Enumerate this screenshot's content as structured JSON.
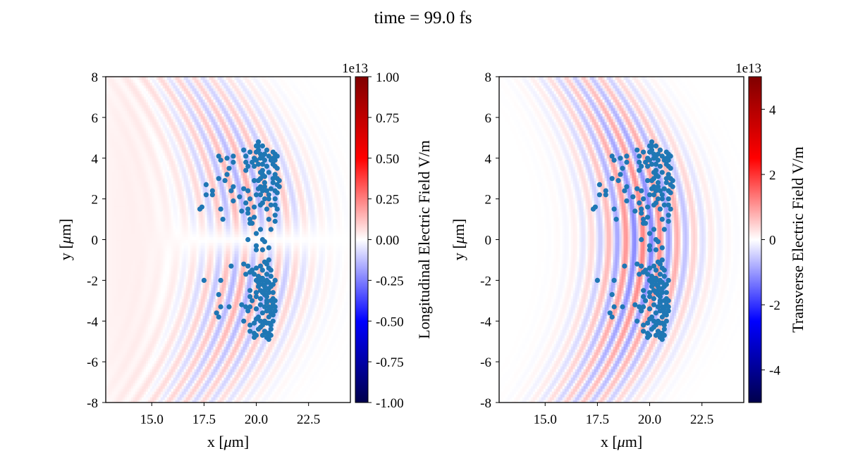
{
  "figure": {
    "suptitle": "time = 99.0 fs"
  },
  "chart_data": [
    {
      "type": "heatmap",
      "name": "longitudinal-field-panel",
      "xlabel": "x [$\\mu$m]",
      "ylabel": "y [$\\mu$m]",
      "xlim": [
        12.8,
        24.5
      ],
      "ylim": [
        -8,
        8
      ],
      "xticks": [
        15.0,
        17.5,
        20.0,
        22.5
      ],
      "xtick_labels": [
        "15.0",
        "17.5",
        "20.0",
        "22.5"
      ],
      "yticks": [
        -8,
        -6,
        -4,
        -2,
        0,
        2,
        4,
        6,
        8
      ],
      "ytick_labels": [
        "-8",
        "-6",
        "-4",
        "-2",
        "0",
        "2",
        "4",
        "6",
        "8"
      ],
      "colorbar": {
        "label": "Longitudinal Electric Field V/m",
        "offset_label": "1e13",
        "range": [
          -1.0,
          1.0
        ],
        "ticks": [
          -1.0,
          -0.75,
          -0.5,
          -0.25,
          0.0,
          0.25,
          0.5,
          0.75,
          1.0
        ],
        "tick_labels": [
          "-1.00",
          "-0.75",
          "-0.50",
          "-0.25",
          "0.00",
          "0.25",
          "0.50",
          "0.75",
          "1.00"
        ],
        "colormap": "seismic"
      },
      "field": {
        "pattern": "curved wavefronts, weak amplitude, antisymmetric in y",
        "center_x": 19.8,
        "envelope_x_range": [
          15.5,
          22.5
        ],
        "max_value_fraction": 0.18
      },
      "scatter": {
        "color": "#1f77b4",
        "description": "electron macro-particles"
      },
      "grid": false
    },
    {
      "type": "heatmap",
      "name": "transverse-field-panel",
      "xlabel": "x [$\\mu$m]",
      "ylabel": "y [$\\mu$m]",
      "xlim": [
        12.8,
        24.5
      ],
      "ylim": [
        -8,
        8
      ],
      "xticks": [
        15.0,
        17.5,
        20.0,
        22.5
      ],
      "xtick_labels": [
        "15.0",
        "17.5",
        "20.0",
        "22.5"
      ],
      "yticks": [
        -8,
        -6,
        -4,
        -2,
        0,
        2,
        4,
        6,
        8
      ],
      "ytick_labels": [
        "-8",
        "-6",
        "-4",
        "-2",
        "0",
        "2",
        "4",
        "6",
        "8"
      ],
      "colorbar": {
        "label": "Transverse Electric Field V/m",
        "offset_label": "1e13",
        "range": [
          -5.0,
          5.0
        ],
        "ticks": [
          -4,
          -2,
          0,
          2,
          4
        ],
        "tick_labels": [
          "-4",
          "-2",
          "0",
          "2",
          "4"
        ],
        "colormap": "seismic"
      },
      "field": {
        "pattern": "curved wavefronts, moderate amplitude, symmetric in y",
        "center_x": 19.8,
        "envelope_x_range": [
          16.0,
          22.0
        ],
        "max_value_fraction": 0.25
      },
      "scatter": {
        "color": "#1f77b4",
        "description": "electron macro-particles"
      },
      "grid": false
    }
  ],
  "particles": {
    "points": [
      [
        18.2,
        4.1
      ],
      [
        18.3,
        3.9
      ],
      [
        18.6,
        4.0
      ],
      [
        18.9,
        4.1
      ],
      [
        18.9,
        3.8
      ],
      [
        18.7,
        3.5
      ],
      [
        18.6,
        3.2
      ],
      [
        18.5,
        2.9
      ],
      [
        18.2,
        3.0
      ],
      [
        17.9,
        2.4
      ],
      [
        17.6,
        2.7
      ],
      [
        17.6,
        2.2
      ],
      [
        17.9,
        2.2
      ],
      [
        17.4,
        1.6
      ],
      [
        17.3,
        1.5
      ],
      [
        18.3,
        1.5
      ],
      [
        18.4,
        1.0
      ],
      [
        18.9,
        1.9
      ],
      [
        18.9,
        2.6
      ],
      [
        18.8,
        2.4
      ],
      [
        19.2,
        2.1
      ],
      [
        19.3,
        1.4
      ],
      [
        19.4,
        2.5
      ],
      [
        19.6,
        2.4
      ],
      [
        19.5,
        1.8
      ],
      [
        19.6,
        1.3
      ],
      [
        19.7,
        1.0
      ],
      [
        19.7,
        0.8
      ],
      [
        19.6,
        1.5
      ],
      [
        19.9,
        1.6
      ],
      [
        20.2,
        1.7
      ],
      [
        20.3,
        1.8
      ],
      [
        20.7,
        1.7
      ],
      [
        20.5,
        1.5
      ],
      [
        20.6,
        1.0
      ],
      [
        20.9,
        0.9
      ],
      [
        20.7,
        0.5
      ],
      [
        20.2,
        0.5
      ],
      [
        20.0,
        0.3
      ],
      [
        19.6,
        0.0
      ],
      [
        20.3,
        0.0
      ],
      [
        20.4,
        -0.1
      ],
      [
        20.6,
        -0.4
      ],
      [
        20.0,
        -0.5
      ],
      [
        19.4,
        -1.2
      ],
      [
        19.6,
        -1.3
      ],
      [
        19.7,
        -1.6
      ],
      [
        19.8,
        -1.5
      ],
      [
        19.5,
        -1.7
      ],
      [
        18.8,
        -1.3
      ],
      [
        18.3,
        -2.0
      ],
      [
        17.5,
        -2.0
      ],
      [
        18.2,
        -2.7
      ],
      [
        18.3,
        -3.3
      ],
      [
        18.1,
        -3.6
      ],
      [
        18.2,
        -3.8
      ],
      [
        18.7,
        -3.3
      ],
      [
        19.3,
        -3.2
      ],
      [
        19.5,
        -3.3
      ],
      [
        19.6,
        -3.5
      ],
      [
        19.7,
        -3.3
      ],
      [
        19.4,
        -4.0
      ],
      [
        19.7,
        -4.2
      ],
      [
        19.7,
        -4.5
      ],
      [
        19.9,
        -4.6
      ],
      [
        19.9,
        -4.8
      ],
      [
        19.7,
        -2.5
      ],
      [
        19.7,
        -2.8
      ],
      [
        19.8,
        -3.0
      ],
      [
        20.0,
        -2.6
      ],
      [
        20.0,
        -2.0
      ],
      [
        20.1,
        -1.8
      ],
      [
        20.1,
        -2.3
      ],
      [
        20.3,
        -2.2
      ],
      [
        20.3,
        -1.9
      ],
      [
        20.5,
        -2.1
      ],
      [
        20.6,
        -2.4
      ],
      [
        20.5,
        -2.8
      ],
      [
        20.7,
        -3.0
      ],
      [
        20.7,
        -3.4
      ],
      [
        20.6,
        -3.8
      ],
      [
        20.4,
        -4.0
      ],
      [
        20.7,
        -4.2
      ],
      [
        20.6,
        -4.6
      ],
      [
        20.5,
        -4.8
      ],
      [
        20.8,
        -3.7
      ],
      [
        20.8,
        -3.2
      ],
      [
        20.5,
        -3.0
      ],
      [
        20.9,
        -2.0
      ],
      [
        20.3,
        -3.6
      ],
      [
        20.2,
        -4.3
      ],
      [
        20.0,
        -3.9
      ],
      [
        20.4,
        -1.1
      ],
      [
        20.2,
        -1.3
      ],
      [
        20.3,
        -1.5
      ],
      [
        20.6,
        -1.0
      ],
      [
        19.8,
        0.8
      ],
      [
        19.5,
        3.4
      ],
      [
        19.4,
        4.4
      ],
      [
        19.5,
        4.1
      ],
      [
        19.6,
        3.6
      ],
      [
        19.7,
        4.3
      ],
      [
        19.9,
        4.0
      ],
      [
        19.8,
        3.8
      ],
      [
        19.9,
        3.6
      ],
      [
        19.5,
        3.8
      ],
      [
        20.1,
        4.8
      ],
      [
        20.1,
        4.6
      ],
      [
        20.1,
        4.4
      ],
      [
        20.2,
        4.2
      ],
      [
        20.2,
        4.0
      ],
      [
        20.3,
        3.7
      ],
      [
        20.3,
        3.4
      ],
      [
        20.4,
        3.1
      ],
      [
        20.4,
        2.8
      ],
      [
        20.2,
        3.0
      ],
      [
        20.5,
        3.6
      ],
      [
        20.5,
        4.4
      ],
      [
        20.3,
        4.6
      ],
      [
        20.0,
        4.3
      ],
      [
        20.2,
        2.6
      ],
      [
        20.0,
        2.2
      ],
      [
        20.2,
        2.2
      ],
      [
        20.4,
        2.0
      ],
      [
        20.8,
        2.8
      ],
      [
        20.7,
        2.5
      ],
      [
        20.6,
        2.2
      ],
      [
        20.9,
        2.0
      ],
      [
        21.0,
        2.3
      ],
      [
        20.9,
        3.2
      ],
      [
        20.9,
        3.6
      ],
      [
        20.9,
        4.2
      ],
      [
        20.8,
        4.3
      ],
      [
        20.9,
        3.9
      ],
      [
        21.0,
        3.5
      ],
      [
        21.1,
        2.9
      ],
      [
        21.1,
        2.6
      ],
      [
        21.0,
        1.5
      ],
      [
        20.9,
        1.2
      ],
      [
        20.8,
        3.0
      ],
      [
        20.4,
        4.2
      ],
      [
        19.9,
        2.9
      ],
      [
        19.9,
        1.1
      ],
      [
        20.1,
        2.9
      ],
      [
        19.7,
        2.0
      ],
      [
        20.7,
        -1.5
      ],
      [
        20.7,
        -1.8
      ],
      [
        20.8,
        -2.2
      ],
      [
        20.6,
        -2.6
      ],
      [
        20.8,
        -2.6
      ],
      [
        20.9,
        -3.0
      ],
      [
        20.4,
        -3.3
      ],
      [
        20.4,
        -2.5
      ],
      [
        20.2,
        -2.9
      ],
      [
        20.0,
        -3.4
      ],
      [
        20.1,
        -3.8
      ],
      [
        19.9,
        -4.1
      ],
      [
        20.4,
        -4.5
      ],
      [
        20.6,
        -4.1
      ],
      [
        20.7,
        -4.4
      ],
      [
        20.8,
        -4.0
      ],
      [
        20.6,
        -3.3
      ],
      [
        20.3,
        -4.2
      ],
      [
        20.5,
        -3.5
      ],
      [
        20.9,
        -3.5
      ],
      [
        20.3,
        -0.5
      ],
      [
        20.0,
        -0.3
      ],
      [
        20.2,
        -1.9
      ],
      [
        19.9,
        -1.7
      ],
      [
        20.0,
        -1.4
      ],
      [
        20.3,
        -2.0
      ],
      [
        20.1,
        -2.1
      ],
      [
        20.5,
        -1.7
      ],
      [
        20.4,
        -2.3
      ],
      [
        20.6,
        -2.1
      ],
      [
        20.6,
        -1.4
      ],
      [
        20.5,
        -1.2
      ],
      [
        20.7,
        -2.3
      ],
      [
        20.4,
        -2.7
      ],
      [
        20.8,
        -2.9
      ],
      [
        20.9,
        -3.3
      ],
      [
        20.7,
        -3.6
      ],
      [
        20.5,
        -4.1
      ],
      [
        20.2,
        -4.0
      ],
      [
        20.1,
        -4.4
      ],
      [
        20.0,
        -4.7
      ],
      [
        20.5,
        -4.6
      ],
      [
        20.6,
        -4.9
      ],
      [
        20.3,
        -4.7
      ],
      [
        20.7,
        -4.7
      ],
      [
        20.5,
        -3.1
      ],
      [
        20.2,
        -3.2
      ],
      [
        20.3,
        -2.6
      ],
      [
        20.0,
        -2.8
      ],
      [
        20.2,
        -2.5
      ],
      [
        20.5,
        -2.0
      ],
      [
        20.1,
        3.7
      ],
      [
        20.0,
        3.9
      ],
      [
        20.3,
        4.1
      ],
      [
        20.0,
        4.6
      ],
      [
        20.3,
        3.2
      ],
      [
        20.4,
        2.6
      ],
      [
        20.6,
        2.0
      ],
      [
        20.5,
        2.4
      ],
      [
        20.3,
        2.4
      ],
      [
        20.1,
        2.5
      ],
      [
        20.6,
        3.3
      ],
      [
        20.4,
        3.9
      ],
      [
        20.2,
        3.3
      ],
      [
        20.6,
        4.1
      ],
      [
        20.8,
        3.7
      ],
      [
        20.7,
        3.9
      ],
      [
        21.0,
        3.0
      ],
      [
        21.0,
        2.7
      ],
      [
        20.9,
        2.4
      ],
      [
        21.0,
        4.1
      ],
      [
        20.8,
        4.0
      ],
      [
        20.9,
        1.7
      ]
    ]
  }
}
